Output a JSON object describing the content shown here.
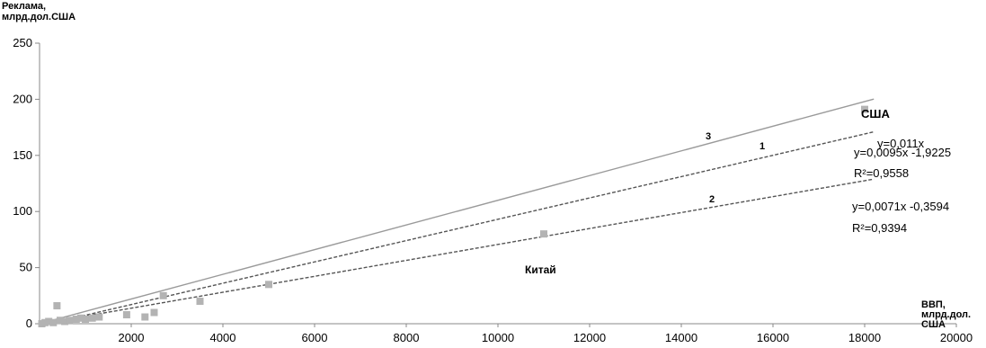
{
  "chart_data": {
    "type": "scatter",
    "ylabel_lines": [
      "Реклама,",
      "млрд.дол.США"
    ],
    "xlabel_lines": [
      "ВВП,",
      "млрд.дол.",
      "США"
    ],
    "xlim": [
      0,
      20000
    ],
    "ylim": [
      0,
      250
    ],
    "x_ticks": [
      2000,
      4000,
      6000,
      8000,
      10000,
      12000,
      14000,
      16000,
      18000,
      20000
    ],
    "y_ticks": [
      0,
      50,
      100,
      150,
      200,
      250
    ],
    "grid": false,
    "points": [
      {
        "x": 50,
        "y": 0
      },
      {
        "x": 120,
        "y": 1
      },
      {
        "x": 200,
        "y": 2
      },
      {
        "x": 300,
        "y": 1
      },
      {
        "x": 380,
        "y": 16
      },
      {
        "x": 450,
        "y": 3
      },
      {
        "x": 550,
        "y": 2
      },
      {
        "x": 650,
        "y": 3
      },
      {
        "x": 800,
        "y": 4
      },
      {
        "x": 900,
        "y": 5
      },
      {
        "x": 1000,
        "y": 4
      },
      {
        "x": 1150,
        "y": 5
      },
      {
        "x": 1300,
        "y": 6
      },
      {
        "x": 1900,
        "y": 8
      },
      {
        "x": 2300,
        "y": 6
      },
      {
        "x": 2500,
        "y": 10
      },
      {
        "x": 2700,
        "y": 25
      },
      {
        "x": 3500,
        "y": 20
      },
      {
        "x": 5000,
        "y": 35
      },
      {
        "x": 11000,
        "y": 80
      },
      {
        "x": 18000,
        "y": 191
      }
    ],
    "trendlines": [
      {
        "name": "3",
        "slope": 0.011,
        "intercept": 0,
        "style": "solid",
        "equation": "y=0,011x"
      },
      {
        "name": "1",
        "slope": 0.0095,
        "intercept": -1.9225,
        "style": "dashed",
        "equation": "y=0,0095x -1,9225",
        "r2": "R²=0,9558"
      },
      {
        "name": "2",
        "slope": 0.0071,
        "intercept": -0.3594,
        "style": "dashed",
        "equation": "y=0,0071x -0,3594",
        "r2": "R²=0,9394"
      }
    ],
    "annotations": {
      "usa": "США",
      "china": "Китай"
    },
    "colors": {
      "points": "#b3b3b3",
      "lines": "#555555",
      "axis": "#888888"
    }
  }
}
